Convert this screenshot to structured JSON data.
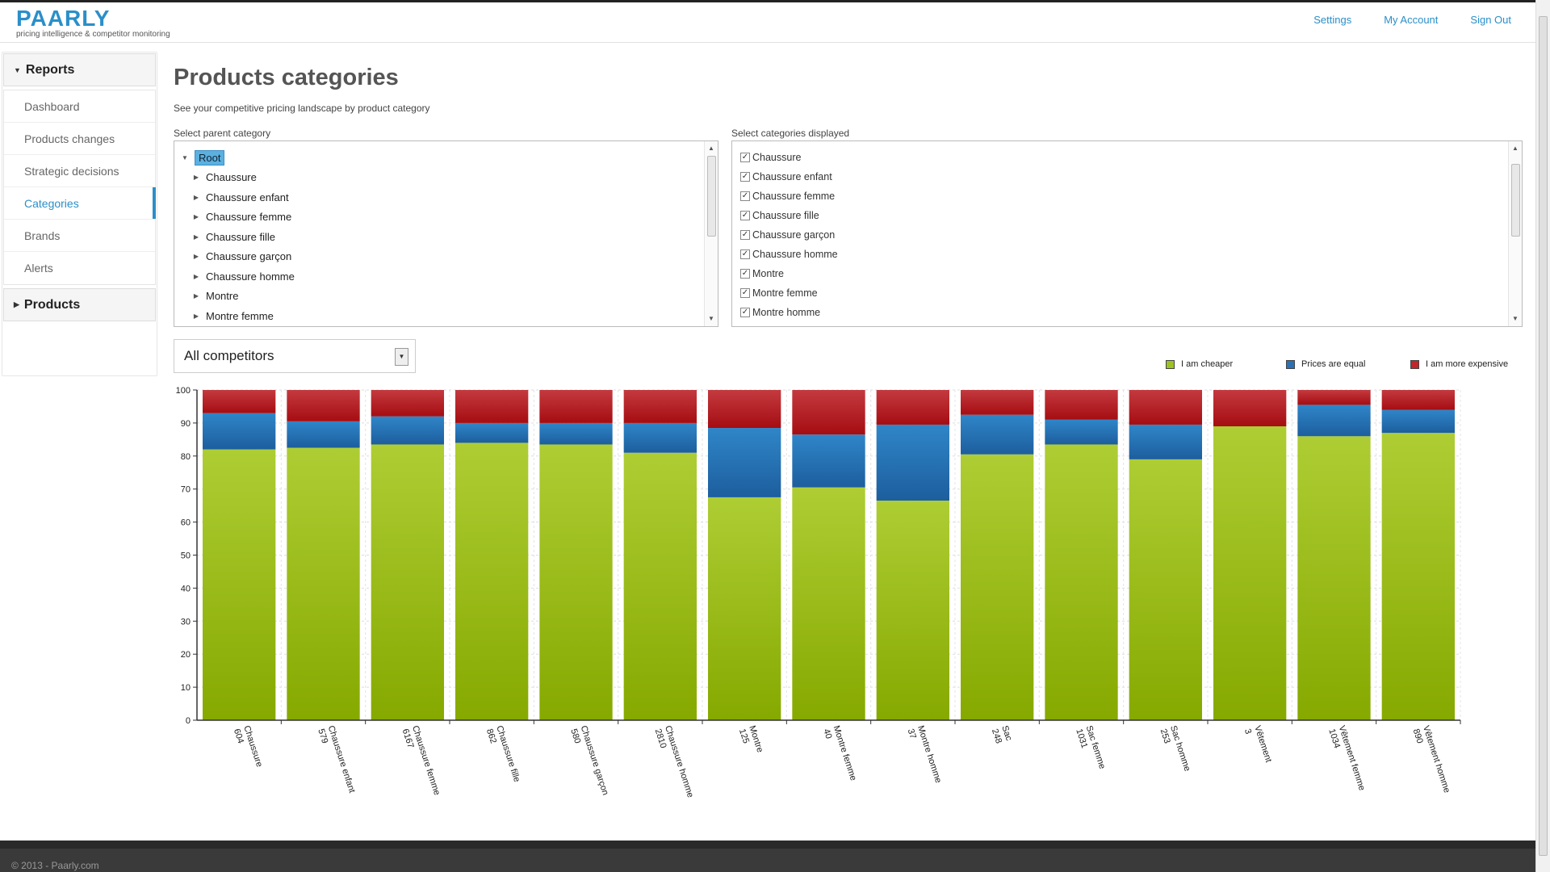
{
  "app": {
    "logo_name": "PAARLY",
    "logo_tagline": "pricing intelligence & competitor monitoring"
  },
  "nav": {
    "settings": "Settings",
    "my_account": "My Account",
    "sign_out": "Sign Out"
  },
  "sidebar": {
    "reports_label": "Reports",
    "items": [
      {
        "label": "Dashboard"
      },
      {
        "label": "Products changes"
      },
      {
        "label": "Strategic decisions"
      },
      {
        "label": "Categories",
        "active": true
      },
      {
        "label": "Brands"
      },
      {
        "label": "Alerts"
      }
    ],
    "products_label": "Products"
  },
  "main": {
    "title": "Products categories",
    "subtitle": "See your competitive pricing landscape by product category",
    "parent_label": "Select parent category",
    "displayed_label": "Select categories displayed",
    "tree_root": "Root",
    "tree_items": [
      "Chaussure",
      "Chaussure enfant",
      "Chaussure femme",
      "Chaussure fille",
      "Chaussure garçon",
      "Chaussure homme",
      "Montre",
      "Montre femme"
    ],
    "checkbox_items": [
      "Chaussure",
      "Chaussure enfant",
      "Chaussure femme",
      "Chaussure fille",
      "Chaussure garçon",
      "Chaussure homme",
      "Montre",
      "Montre femme",
      "Montre homme"
    ],
    "competitor_select": "All competitors"
  },
  "legend": {
    "cheaper": "I am cheaper",
    "equal": "Prices are equal",
    "expensive": "I am more expensive"
  },
  "colors": {
    "cheaper": "#9cc322",
    "equal": "#2a72b5",
    "expensive": "#c0262b",
    "accent": "#2a8fc9"
  },
  "chart_data": {
    "type": "bar",
    "stacked": true,
    "ylim": [
      0,
      100
    ],
    "yticks": [
      0,
      10,
      20,
      30,
      40,
      50,
      60,
      70,
      80,
      90,
      100
    ],
    "categories": [
      {
        "name": "Chaussure",
        "count": "604"
      },
      {
        "name": "Chaussure enfant",
        "count": "579"
      },
      {
        "name": "Chaussure femme",
        "count": "6167"
      },
      {
        "name": "Chaussure fille",
        "count": "862"
      },
      {
        "name": "Chaussure garçon",
        "count": "580"
      },
      {
        "name": "Chaussure homme",
        "count": "2810"
      },
      {
        "name": "Montre",
        "count": "125"
      },
      {
        "name": "Montre femme",
        "count": "40"
      },
      {
        "name": "Montre homme",
        "count": "37"
      },
      {
        "name": "Sac",
        "count": "248"
      },
      {
        "name": "Sac femme",
        "count": "1031"
      },
      {
        "name": "Sac homme",
        "count": "253"
      },
      {
        "name": "Vêtement",
        "count": "3"
      },
      {
        "name": "Vêtement femme",
        "count": "1034"
      },
      {
        "name": "Vêtement homme",
        "count": "890"
      }
    ],
    "series": [
      {
        "name": "I am cheaper",
        "values": [
          82,
          82.5,
          83.5,
          84,
          83.5,
          81,
          67.5,
          70.5,
          66.5,
          80.5,
          83.5,
          79,
          89,
          86,
          87
        ]
      },
      {
        "name": "Prices are equal",
        "values": [
          11,
          8,
          8.5,
          6,
          6.5,
          9,
          21,
          16,
          23,
          12,
          7.5,
          10.5,
          0,
          9.5,
          7
        ]
      },
      {
        "name": "I am more expensive",
        "values": [
          7,
          9.5,
          8,
          10,
          10,
          10,
          11.5,
          13.5,
          10.5,
          7.5,
          9,
          10.5,
          11,
          4.5,
          6
        ]
      }
    ]
  },
  "footer": {
    "copyright": "© 2013 - Paarly.com"
  }
}
